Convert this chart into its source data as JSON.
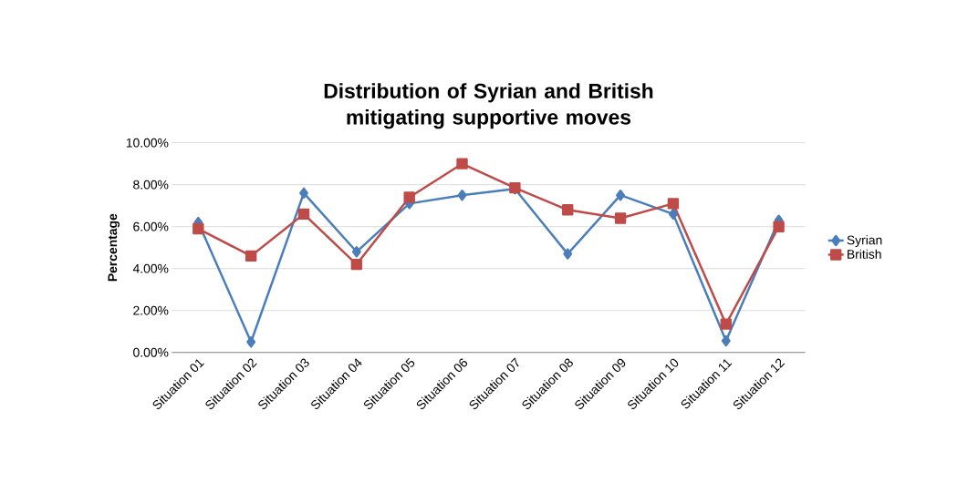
{
  "chart_data": {
    "type": "line",
    "title": "Distribution of Syrian and British mitigating supportive moves",
    "ylabel": "Percentage",
    "categories": [
      "Situation 01",
      "Situation 02",
      "Situation 03",
      "Situation 04",
      "Situation 05",
      "Situation 06",
      "Situation 07",
      "Situation 08",
      "Situation 09",
      "Situation 10",
      "Situation 11",
      "Situation 12"
    ],
    "series": [
      {
        "name": "Syrian",
        "color": "#4a7ebb",
        "marker": "diamond",
        "values": [
          6.2,
          0.5,
          7.6,
          4.8,
          7.1,
          7.5,
          7.8,
          4.7,
          7.5,
          6.6,
          0.55,
          6.3
        ]
      },
      {
        "name": "British",
        "color": "#be4b48",
        "marker": "square",
        "values": [
          5.9,
          4.6,
          6.6,
          4.2,
          7.4,
          9.0,
          7.85,
          6.8,
          6.4,
          7.1,
          1.35,
          6.0
        ]
      }
    ],
    "ylim": [
      0,
      10
    ],
    "yticks": [
      {
        "value": 0,
        "label": "0.00%"
      },
      {
        "value": 2,
        "label": "2.00%"
      },
      {
        "value": 4,
        "label": "4.00%"
      },
      {
        "value": 6,
        "label": "6.00%"
      },
      {
        "value": 8,
        "label": "8.00%"
      },
      {
        "value": 10,
        "label": "10.00%"
      }
    ],
    "grid": "y",
    "legend": "right",
    "line_style": "solid"
  }
}
